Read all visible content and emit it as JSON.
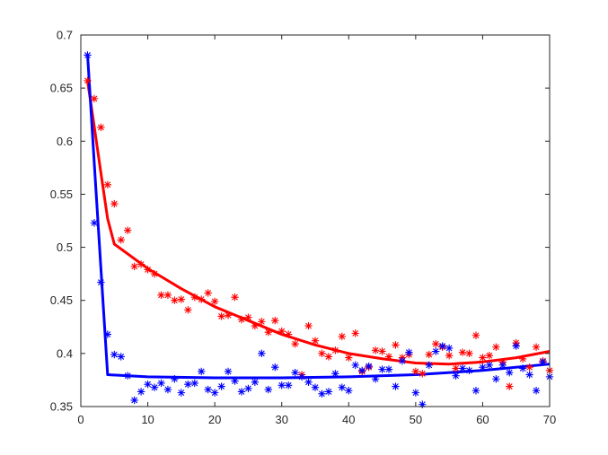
{
  "chart_data": {
    "type": "scatter",
    "title": "",
    "xlabel": "",
    "ylabel": "",
    "xlim": [
      0,
      70
    ],
    "ylim": [
      0.35,
      0.7
    ],
    "grid": false,
    "legend": "none",
    "xticks": [
      "0",
      "10",
      "20",
      "30",
      "40",
      "50",
      "60",
      "70"
    ],
    "yticks": [
      "0.35",
      "0.4",
      "0.45",
      "0.5",
      "0.55",
      "0.6",
      "0.65",
      "0.7"
    ],
    "series": [
      {
        "color": "#ff0000",
        "marker": "asterisk",
        "points": [
          [
            1,
            0.657
          ],
          [
            2,
            0.64
          ],
          [
            3,
            0.613
          ],
          [
            4,
            0.559
          ],
          [
            5,
            0.541
          ],
          [
            6,
            0.507
          ],
          [
            7,
            0.516
          ],
          [
            8,
            0.482
          ],
          [
            9,
            0.484
          ],
          [
            10,
            0.479
          ],
          [
            11,
            0.475
          ],
          [
            12,
            0.455
          ],
          [
            13,
            0.455
          ],
          [
            14,
            0.45
          ],
          [
            15,
            0.451
          ],
          [
            16,
            0.441
          ],
          [
            17,
            0.453
          ],
          [
            18,
            0.451
          ],
          [
            19,
            0.457
          ],
          [
            20,
            0.449
          ],
          [
            21,
            0.435
          ],
          [
            22,
            0.436
          ],
          [
            23,
            0.453
          ],
          [
            24,
            0.432
          ],
          [
            25,
            0.434
          ],
          [
            26,
            0.426
          ],
          [
            27,
            0.43
          ],
          [
            28,
            0.42
          ],
          [
            29,
            0.431
          ],
          [
            30,
            0.421
          ],
          [
            31,
            0.418
          ],
          [
            32,
            0.409
          ],
          [
            33,
            0.38
          ],
          [
            34,
            0.426
          ],
          [
            35,
            0.412
          ],
          [
            36,
            0.4
          ],
          [
            37,
            0.397
          ],
          [
            38,
            0.403
          ],
          [
            39,
            0.416
          ],
          [
            40,
            0.396
          ],
          [
            41,
            0.419
          ],
          [
            42,
            0.383
          ],
          [
            43,
            0.387
          ],
          [
            44,
            0.403
          ],
          [
            45,
            0.402
          ],
          [
            46,
            0.397
          ],
          [
            47,
            0.408
          ],
          [
            48,
            0.396
          ],
          [
            49,
            0.399
          ],
          [
            50,
            0.383
          ],
          [
            51,
            0.381
          ],
          [
            52,
            0.399
          ],
          [
            53,
            0.409
          ],
          [
            54,
            0.406
          ],
          [
            55,
            0.398
          ],
          [
            56,
            0.386
          ],
          [
            57,
            0.401
          ],
          [
            58,
            0.4
          ],
          [
            59,
            0.417
          ],
          [
            60,
            0.396
          ],
          [
            61,
            0.398
          ],
          [
            62,
            0.406
          ],
          [
            63,
            0.392
          ],
          [
            64,
            0.369
          ],
          [
            65,
            0.41
          ],
          [
            66,
            0.395
          ],
          [
            67,
            0.387
          ],
          [
            68,
            0.406
          ],
          [
            69,
            0.393
          ],
          [
            70,
            0.384
          ]
        ]
      },
      {
        "color": "#0000ff",
        "marker": "asterisk",
        "points": [
          [
            1,
            0.681
          ],
          [
            2,
            0.523
          ],
          [
            3,
            0.467
          ],
          [
            4,
            0.418
          ],
          [
            5,
            0.399
          ],
          [
            6,
            0.397
          ],
          [
            7,
            0.379
          ],
          [
            8,
            0.356
          ],
          [
            9,
            0.364
          ],
          [
            10,
            0.371
          ],
          [
            11,
            0.368
          ],
          [
            12,
            0.372
          ],
          [
            13,
            0.366
          ],
          [
            14,
            0.376
          ],
          [
            15,
            0.363
          ],
          [
            16,
            0.371
          ],
          [
            17,
            0.372
          ],
          [
            18,
            0.383
          ],
          [
            19,
            0.366
          ],
          [
            20,
            0.363
          ],
          [
            21,
            0.369
          ],
          [
            22,
            0.383
          ],
          [
            23,
            0.374
          ],
          [
            24,
            0.364
          ],
          [
            25,
            0.367
          ],
          [
            26,
            0.373
          ],
          [
            27,
            0.4
          ],
          [
            28,
            0.366
          ],
          [
            29,
            0.387
          ],
          [
            30,
            0.37
          ],
          [
            31,
            0.37
          ],
          [
            32,
            0.382
          ],
          [
            33,
            0.378
          ],
          [
            34,
            0.373
          ],
          [
            35,
            0.368
          ],
          [
            36,
            0.362
          ],
          [
            37,
            0.364
          ],
          [
            38,
            0.381
          ],
          [
            39,
            0.368
          ],
          [
            40,
            0.365
          ],
          [
            41,
            0.389
          ],
          [
            42,
            0.384
          ],
          [
            43,
            0.388
          ],
          [
            44,
            0.376
          ],
          [
            45,
            0.385
          ],
          [
            46,
            0.385
          ],
          [
            47,
            0.369
          ],
          [
            48,
            0.393
          ],
          [
            49,
            0.401
          ],
          [
            50,
            0.363
          ],
          [
            51,
            0.352
          ],
          [
            52,
            0.389
          ],
          [
            53,
            0.402
          ],
          [
            54,
            0.407
          ],
          [
            55,
            0.405
          ],
          [
            56,
            0.379
          ],
          [
            57,
            0.386
          ],
          [
            58,
            0.384
          ],
          [
            59,
            0.365
          ],
          [
            60,
            0.387
          ],
          [
            61,
            0.389
          ],
          [
            62,
            0.376
          ],
          [
            63,
            0.389
          ],
          [
            64,
            0.382
          ],
          [
            65,
            0.407
          ],
          [
            66,
            0.386
          ],
          [
            67,
            0.38
          ],
          [
            68,
            0.365
          ],
          [
            69,
            0.392
          ],
          [
            70,
            0.378
          ]
        ]
      }
    ],
    "fit_lines": [
      {
        "color": "#ff0000",
        "points": [
          [
            1,
            0.657
          ],
          [
            2,
            0.614
          ],
          [
            3,
            0.57
          ],
          [
            4,
            0.527
          ],
          [
            5,
            0.503
          ],
          [
            10,
            0.48
          ],
          [
            15,
            0.461
          ],
          [
            20,
            0.444
          ],
          [
            25,
            0.431
          ],
          [
            30,
            0.418
          ],
          [
            35,
            0.408
          ],
          [
            40,
            0.4
          ],
          [
            45,
            0.395
          ],
          [
            50,
            0.391
          ],
          [
            55,
            0.39
          ],
          [
            60,
            0.392
          ],
          [
            65,
            0.396
          ],
          [
            70,
            0.402
          ]
        ]
      },
      {
        "color": "#0000ff",
        "points": [
          [
            1,
            0.682
          ],
          [
            2,
            0.58
          ],
          [
            3,
            0.48
          ],
          [
            4,
            0.38
          ],
          [
            10,
            0.378
          ],
          [
            20,
            0.377
          ],
          [
            30,
            0.377
          ],
          [
            40,
            0.378
          ],
          [
            50,
            0.38
          ],
          [
            60,
            0.384
          ],
          [
            70,
            0.39
          ]
        ]
      }
    ]
  }
}
